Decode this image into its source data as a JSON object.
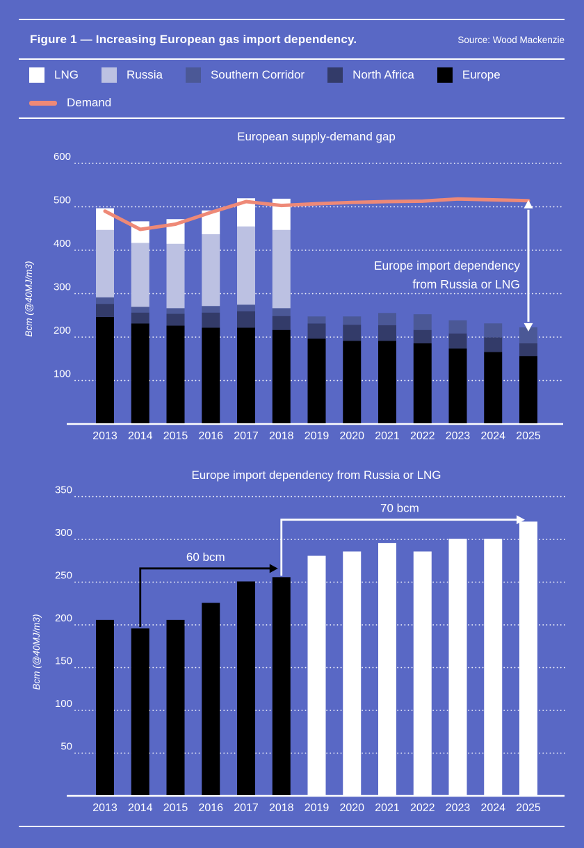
{
  "header": {
    "title": "Figure 1 — Increasing European gas import dependency.",
    "source": "Source: Wood Mackenzie"
  },
  "colors": {
    "background": "#5968C5",
    "text": "#FFFFFF",
    "lng": "#FFFFFF",
    "russia": "#BCC1E2",
    "southern_corridor": "#4B5896",
    "north_africa": "#333B69",
    "europe": "#000000",
    "demand": "#EE8977"
  },
  "legend": {
    "rows": [
      [
        {
          "label": "LNG",
          "color": "#FFFFFF",
          "type": "square"
        },
        {
          "label": "Russia",
          "color": "#BCC1E2",
          "type": "square"
        },
        {
          "label": "Southern Corridor",
          "color": "#4B5896",
          "type": "square"
        },
        {
          "label": "North Africa",
          "color": "#333B69",
          "type": "square"
        },
        {
          "label": "Europe",
          "color": "#000000",
          "type": "square"
        }
      ],
      [
        {
          "label": "Demand",
          "color": "#EE8977",
          "type": "line"
        }
      ]
    ]
  },
  "chart_data": [
    {
      "type": "bar",
      "subtype": "stacked-bar-with-line",
      "title": "European supply-demand gap",
      "ylabel": "Bcm (@40MJ/m3)",
      "ylim": [
        0,
        600
      ],
      "yticks": [
        100,
        200,
        300,
        400,
        500,
        600
      ],
      "grid": true,
      "categories": [
        "2013",
        "2014",
        "2015",
        "2016",
        "2017",
        "2018",
        "2019",
        "2020",
        "2021",
        "2022",
        "2023",
        "2024",
        "2025"
      ],
      "series": [
        {
          "name": "Europe",
          "color": "#000000",
          "values": [
            245,
            230,
            225,
            220,
            220,
            215,
            195,
            190,
            190,
            184,
            172,
            164,
            155
          ]
        },
        {
          "name": "North Africa",
          "color": "#333B69",
          "values": [
            30,
            25,
            27,
            35,
            38,
            32,
            35,
            37,
            36,
            31,
            35,
            34,
            29
          ]
        },
        {
          "name": "Southern Corridor",
          "color": "#4B5896",
          "values": [
            15,
            13,
            13,
            15,
            15,
            18,
            16,
            19,
            28,
            36,
            30,
            32,
            37
          ]
        },
        {
          "name": "Russia",
          "color": "#BCC1E2",
          "values": [
            155,
            147,
            148,
            165,
            180,
            180,
            0,
            0,
            0,
            0,
            0,
            0,
            0
          ]
        },
        {
          "name": "LNG",
          "color": "#FFFFFF",
          "values": [
            50,
            50,
            57,
            55,
            65,
            72,
            0,
            0,
            0,
            0,
            0,
            0,
            0
          ]
        }
      ],
      "line_series": {
        "name": "Demand",
        "color": "#EE8977",
        "values": [
          490,
          448,
          460,
          487,
          512,
          503,
          507,
          510,
          512,
          513,
          518,
          516,
          514
        ]
      },
      "annotation": {
        "lines": [
          "Europe import dependency",
          "from Russia or LNG"
        ],
        "arrow_year": "2025",
        "color": "#FFFFFF"
      }
    },
    {
      "type": "bar",
      "title": "Europe import dependency from Russia or LNG",
      "ylabel": "Bcm (@40MJ/m3)",
      "ylim": [
        0,
        350
      ],
      "yticks": [
        50,
        100,
        150,
        200,
        250,
        300,
        350
      ],
      "grid": true,
      "categories": [
        "2013",
        "2014",
        "2015",
        "2016",
        "2017",
        "2018",
        "2019",
        "2020",
        "2021",
        "2022",
        "2023",
        "2024",
        "2025"
      ],
      "values": [
        205,
        195,
        205,
        225,
        250,
        255,
        280,
        285,
        295,
        285,
        300,
        300,
        320
      ],
      "bar_colors": [
        "#000000",
        "#000000",
        "#000000",
        "#000000",
        "#000000",
        "#000000",
        "#FFFFFF",
        "#FFFFFF",
        "#FFFFFF",
        "#FFFFFF",
        "#FFFFFF",
        "#FFFFFF",
        "#FFFFFF"
      ],
      "annotations": [
        {
          "label": "60 bcm",
          "from": "2014",
          "to": "2018",
          "level": 266,
          "color": "#000000"
        },
        {
          "label": "70 bcm",
          "from": "2018",
          "to": "2025",
          "level": 323,
          "color": "#FFFFFF"
        }
      ]
    }
  ]
}
